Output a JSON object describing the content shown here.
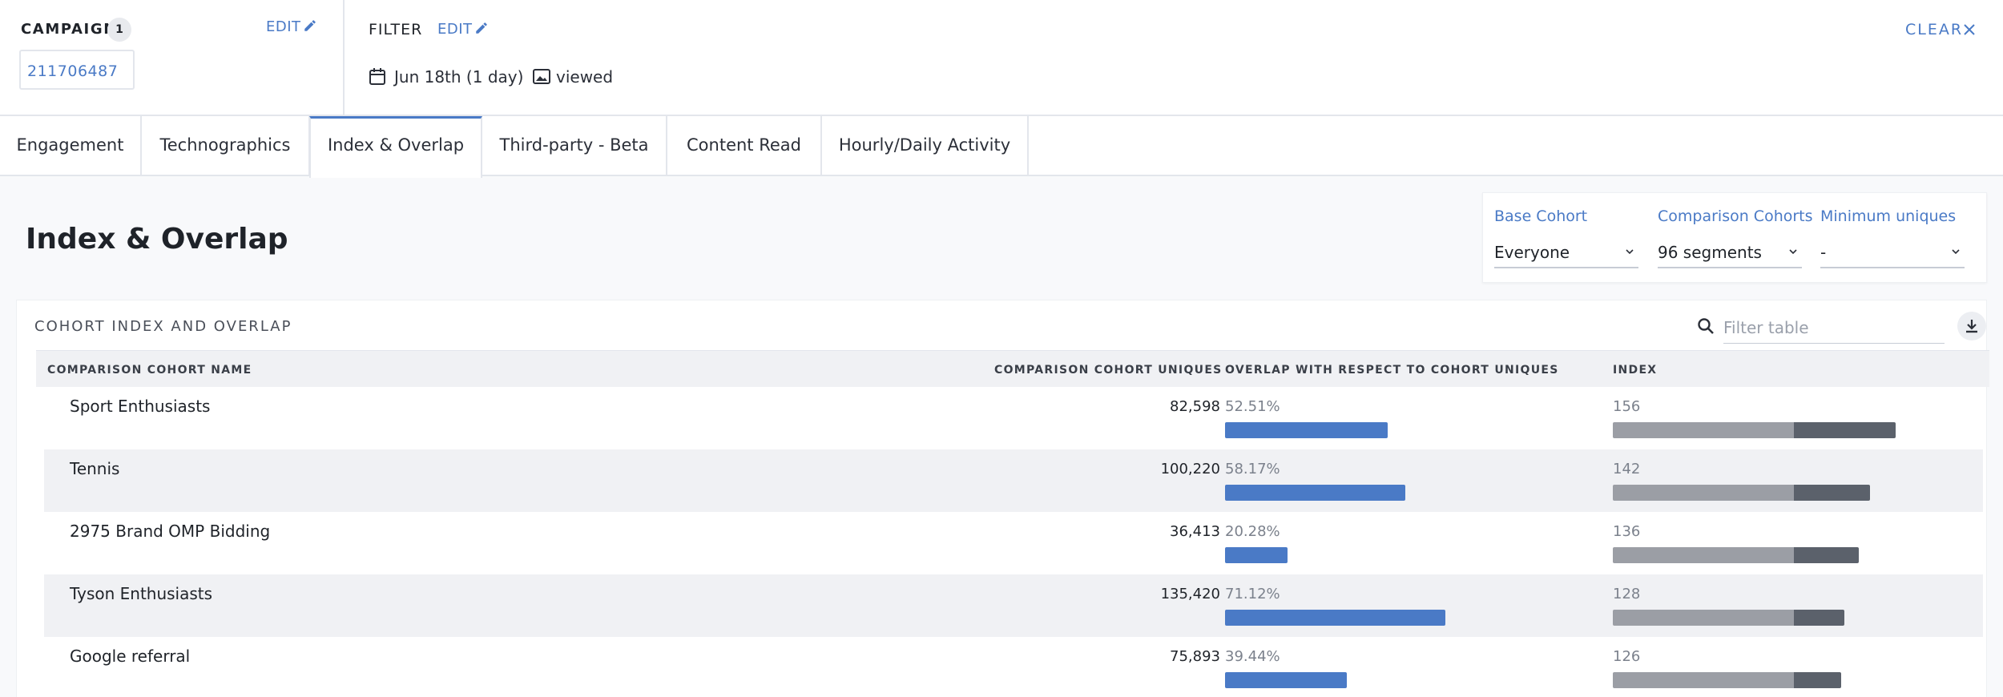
{
  "header": {
    "campaign_label": "CAMPAIGN",
    "campaign_count": "1",
    "campaign_edit": "EDIT",
    "campaign_id": "211706487",
    "filter_label": "FILTER",
    "filter_edit": "EDIT",
    "filter_date": "Jun 18th (1 day)",
    "filter_viewed": "viewed",
    "clear": "CLEAR"
  },
  "tabs": [
    {
      "label": "Engagement",
      "active": false
    },
    {
      "label": "Technographics",
      "active": false
    },
    {
      "label": "Index & Overlap",
      "active": true
    },
    {
      "label": "Third-party - Beta",
      "active": false
    },
    {
      "label": "Content Read",
      "active": false
    },
    {
      "label": "Hourly/Daily Activity",
      "active": false
    }
  ],
  "page": {
    "title": "Index & Overlap"
  },
  "controls": {
    "base_cohort_label": "Base Cohort",
    "base_cohort_value": "Everyone",
    "comparison_label": "Comparison Cohorts",
    "comparison_value": "96 segments",
    "min_uniques_label": "Minimum uniques",
    "min_uniques_value": "-"
  },
  "table": {
    "title": "COHORT INDEX AND OVERLAP",
    "filter_placeholder": "Filter table",
    "columns": {
      "name": "COMPARISON COHORT NAME",
      "uniques": "COMPARISON COHORT UNIQUES",
      "overlap": "OVERLAP WITH RESPECT TO COHORT UNIQUES",
      "index": "INDEX"
    },
    "rows": [
      {
        "name": "Sport Enthusiasts",
        "uniques": "82,598",
        "overlap": "52.51%",
        "overlap_pct": 52.51,
        "index": "156",
        "index_value": 156
      },
      {
        "name": "Tennis",
        "uniques": "100,220",
        "overlap": "58.17%",
        "overlap_pct": 58.17,
        "index": "142",
        "index_value": 142
      },
      {
        "name": "2975 Brand OMP Bidding",
        "uniques": "36,413",
        "overlap": "20.28%",
        "overlap_pct": 20.28,
        "index": "136",
        "index_value": 136
      },
      {
        "name": "Tyson Enthusiasts",
        "uniques": "135,420",
        "overlap": "71.12%",
        "overlap_pct": 71.12,
        "index": "128",
        "index_value": 128
      },
      {
        "name": "Google referral",
        "uniques": "75,893",
        "overlap": "39.44%",
        "overlap_pct": 39.44,
        "index": "126",
        "index_value": 126
      }
    ]
  },
  "colors": {
    "accent": "#4a7ac6",
    "overlap_bar": "#4a7ac6",
    "index_base": "#9b9ea5",
    "index_excess": "#5b616b"
  }
}
